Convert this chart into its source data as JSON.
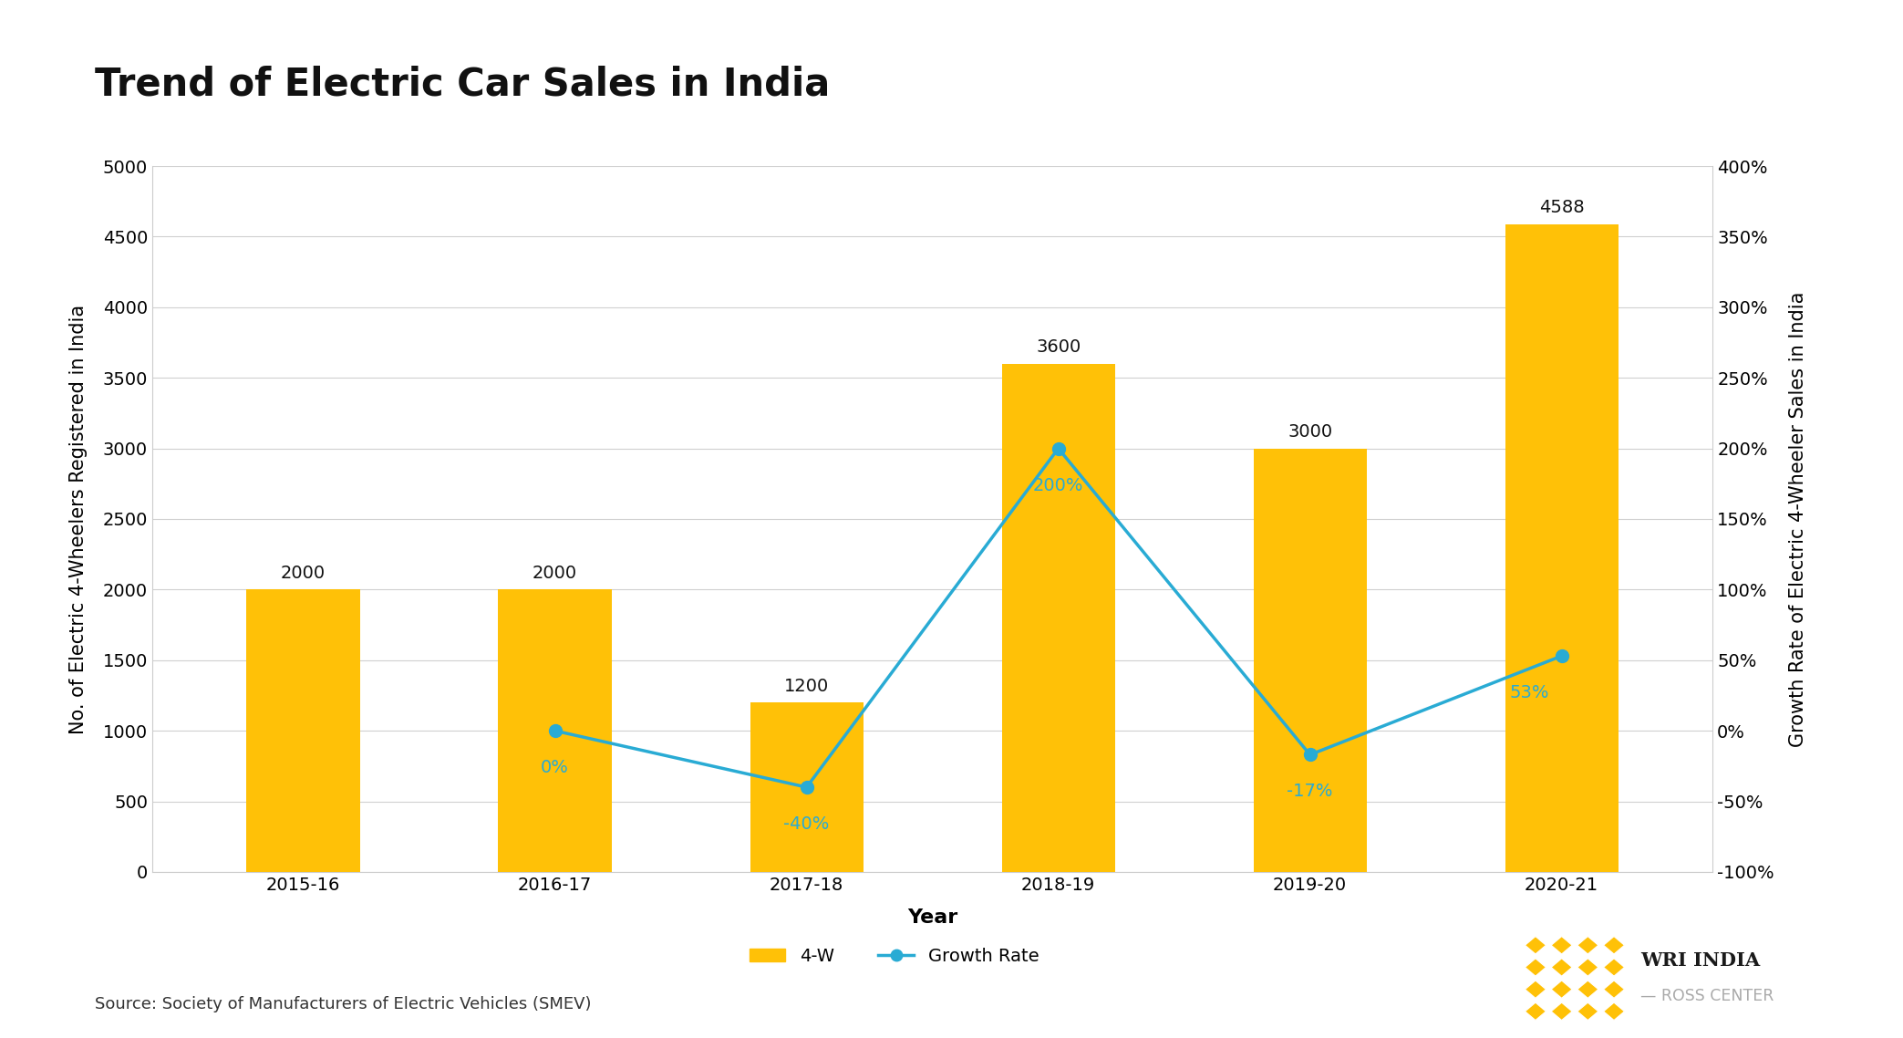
{
  "title": "Trend of Electric Car Sales in India",
  "categories": [
    "2015-16",
    "2016-17",
    "2017-18",
    "2018-19",
    "2019-20",
    "2020-21"
  ],
  "bar_values": [
    2000,
    2000,
    1200,
    3600,
    3000,
    4588
  ],
  "growth_values": [
    null,
    0,
    -40,
    200,
    -17,
    53
  ],
  "bar_color": "#FFC107",
  "line_color": "#29ABD4",
  "ylabel_left": "No. of Electric 4-Wheelers Registered in India",
  "ylabel_right": "Growth Rate of Electric 4-Wheeler Sales in India",
  "xlabel": "Year",
  "ylim_left": [
    0,
    5000
  ],
  "ylim_right": [
    -100,
    400
  ],
  "yticks_left": [
    0,
    500,
    1000,
    1500,
    2000,
    2500,
    3000,
    3500,
    4000,
    4500,
    5000
  ],
  "yticks_right": [
    -100,
    -50,
    0,
    50,
    100,
    150,
    200,
    250,
    300,
    350,
    400
  ],
  "source_text": "Source: Society of Manufacturers of Electric Vehicles (SMEV)",
  "legend_bar_label": "4-W",
  "legend_line_label": "Growth Rate",
  "background_color": "#FFFFFF",
  "bar_label_color": "#111111",
  "growth_label_color": "#29ABD4",
  "title_fontsize": 30,
  "axis_label_fontsize": 15,
  "tick_fontsize": 14,
  "annotation_fontsize": 14,
  "source_fontsize": 13,
  "legend_fontsize": 14,
  "bar_width": 0.45,
  "growth_labels": [
    "0%",
    "-40%",
    "200%",
    "-17%",
    "53%"
  ],
  "growth_label_indices": [
    1,
    2,
    3,
    4,
    5
  ]
}
